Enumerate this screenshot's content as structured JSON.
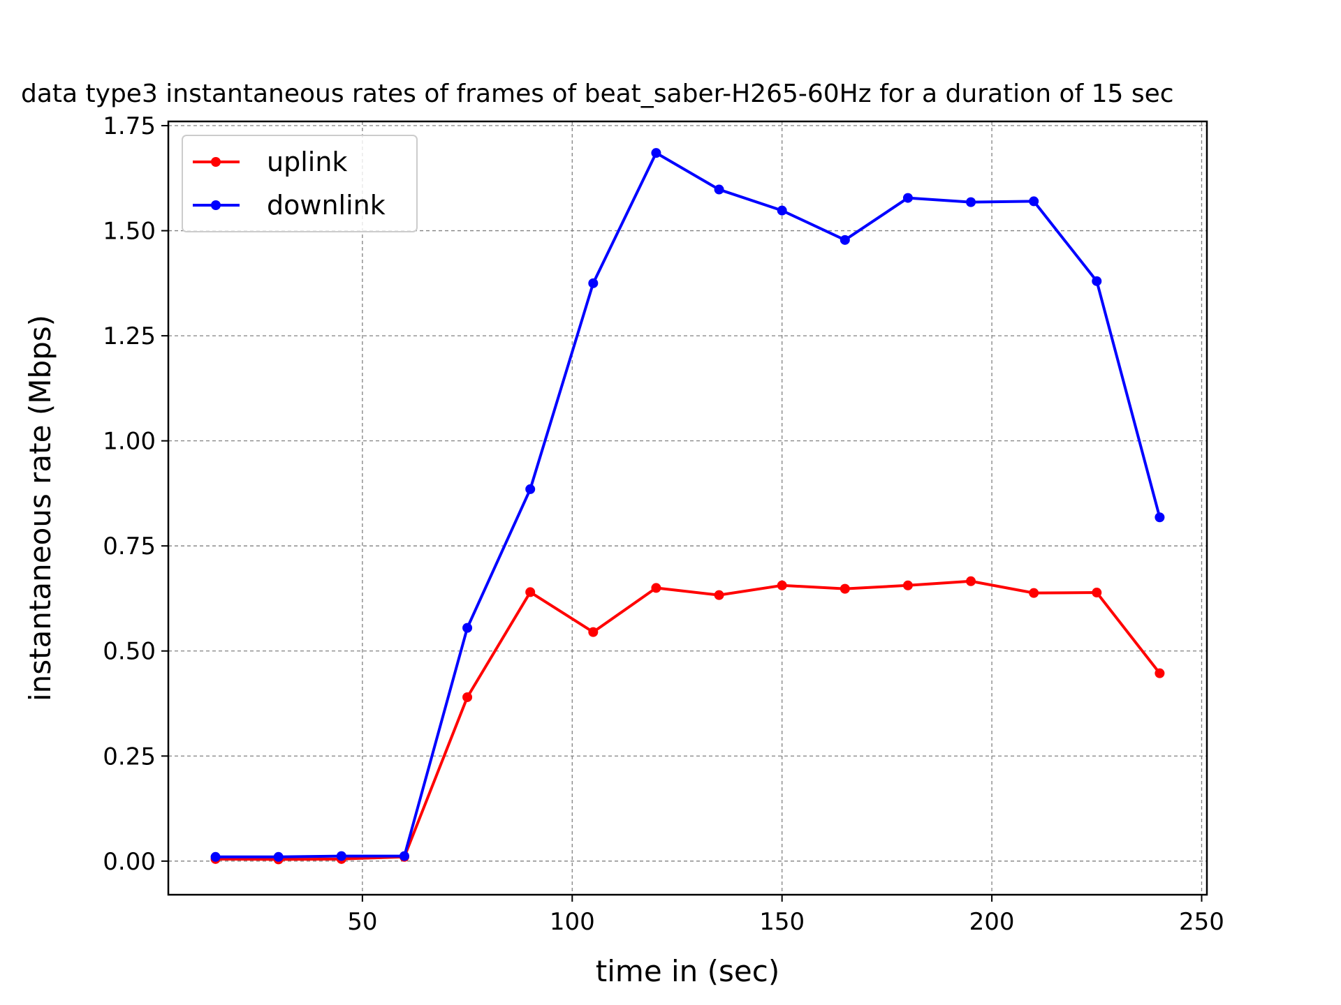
{
  "chart_data": {
    "type": "line",
    "title": "data type3 instantaneous rates of frames of beat_saber-H265-60Hz for a duration of 15 sec",
    "xlabel": "time in (sec)",
    "ylabel": "instantaneous rate (Mbps)",
    "xlim": [
      3.75,
      251.25
    ],
    "ylim": [
      -0.08,
      1.76
    ],
    "xticks": [
      50,
      100,
      150,
      200,
      250
    ],
    "xtick_labels": [
      "50",
      "100",
      "150",
      "200",
      "250"
    ],
    "yticks": [
      0.0,
      0.25,
      0.5,
      0.75,
      1.0,
      1.25,
      1.5,
      1.75
    ],
    "ytick_labels": [
      "0.00",
      "0.25",
      "0.50",
      "0.75",
      "1.00",
      "1.25",
      "1.50",
      "1.75"
    ],
    "grid": true,
    "legend_position": "top-left",
    "x": [
      15,
      30,
      45,
      60,
      75,
      90,
      105,
      120,
      135,
      150,
      165,
      180,
      195,
      210,
      225,
      240
    ],
    "series": [
      {
        "name": "uplink",
        "color": "#ff0000",
        "values": [
          0.005,
          0.004,
          0.005,
          0.01,
          0.39,
          0.64,
          0.545,
          0.65,
          0.633,
          0.656,
          0.648,
          0.656,
          0.666,
          0.638,
          0.639,
          0.447
        ]
      },
      {
        "name": "downlink",
        "color": "#0000ff",
        "values": [
          0.01,
          0.01,
          0.012,
          0.012,
          0.555,
          0.885,
          1.375,
          1.685,
          1.598,
          1.548,
          1.478,
          1.578,
          1.568,
          1.57,
          1.38,
          0.818
        ]
      }
    ]
  }
}
